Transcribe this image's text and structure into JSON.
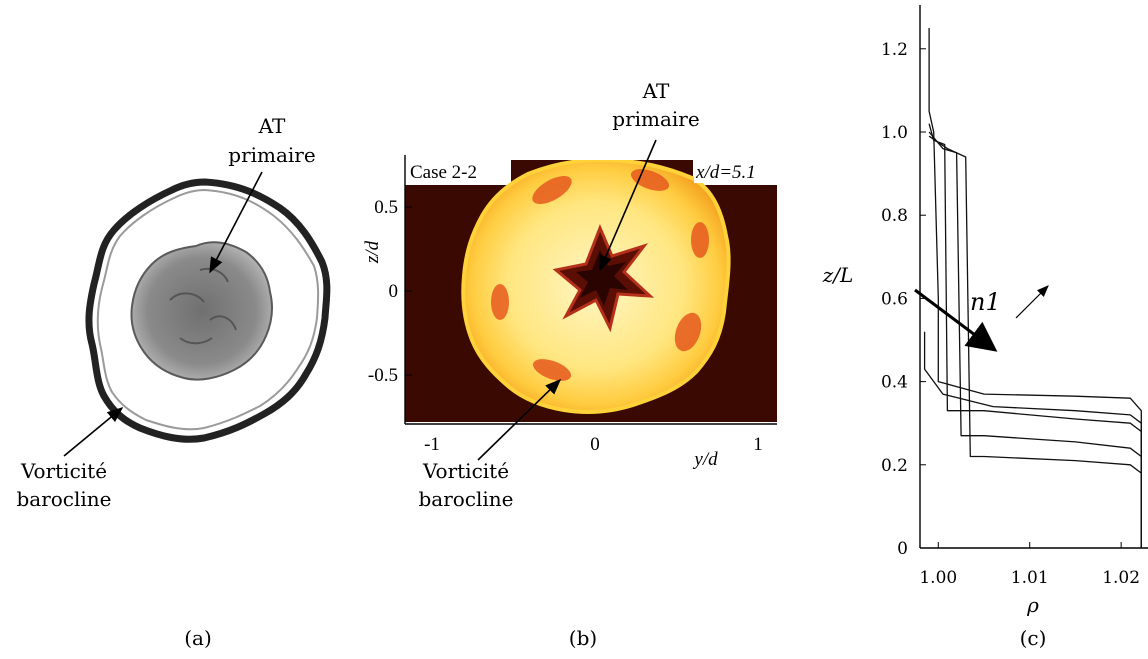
{
  "panel_a": {
    "caption": "(a)",
    "annotation_primary_line1": "AT",
    "annotation_primary_line2": "primaire",
    "annotation_baroclinic_line1": "Vorticité",
    "annotation_baroclinic_line2": "barocline"
  },
  "panel_b": {
    "caption": "(b)",
    "case_label": "Case 2-2",
    "position_label": "x/d=5.1",
    "xlabel": "y/d",
    "ylabel": "z/d",
    "xticks": [
      "-1",
      "0",
      "1"
    ],
    "yticks": [
      "0.5",
      "0",
      "-0.5"
    ],
    "annotation_primary_line1": "AT",
    "annotation_primary_line2": "primaire",
    "annotation_baroclinic_line1": "Vorticité",
    "annotation_baroclinic_line2": "barocline",
    "colors": {
      "background": "#3a0a02",
      "ring": "#fff2a8",
      "band": "#e65a1e"
    }
  },
  "chart_data": {
    "type": "line",
    "caption": "(c)",
    "xlabel": "ρ",
    "ylabel": "z/L",
    "xlim": [
      0.998,
      1.0225
    ],
    "ylim": [
      0,
      1.25
    ],
    "xticks": [
      "1.00",
      "1.01",
      "1.02"
    ],
    "yticks": [
      "0",
      "0.2",
      "0.4",
      "0.6",
      "0.8",
      "1.0",
      "1.2"
    ],
    "annotation": "n1",
    "series": [
      {
        "x": [
          0.999,
          0.999,
          0.9995,
          1.0,
          1.0,
          1.005,
          1.015,
          1.021,
          1.0222,
          1.0222
        ],
        "y": [
          1.25,
          1.05,
          1.0,
          0.6,
          0.4,
          0.37,
          0.365,
          0.36,
          0.33,
          0.0
        ]
      },
      {
        "x": [
          0.999,
          0.9995,
          1.0007,
          1.001,
          1.005,
          1.015,
          1.021,
          1.0222,
          1.0222
        ],
        "y": [
          1.02,
          0.98,
          0.97,
          0.33,
          0.33,
          0.31,
          0.3,
          0.28,
          0.0
        ]
      },
      {
        "x": [
          0.999,
          1.0005,
          1.002,
          1.0025,
          1.005,
          1.015,
          1.021,
          1.0222,
          1.0222
        ],
        "y": [
          1.0,
          0.96,
          0.95,
          0.27,
          0.27,
          0.255,
          0.24,
          0.22,
          0.0
        ]
      },
      {
        "x": [
          0.999,
          1.001,
          1.003,
          1.0035,
          1.005,
          1.015,
          1.021,
          1.0222,
          1.0222
        ],
        "y": [
          0.99,
          0.96,
          0.94,
          0.22,
          0.22,
          0.21,
          0.2,
          0.18,
          0.0
        ]
      },
      {
        "x": [
          0.9985,
          0.9985,
          1.0005,
          1.006,
          1.015,
          1.021,
          1.0222,
          1.0222
        ],
        "y": [
          0.52,
          0.43,
          0.37,
          0.34,
          0.33,
          0.32,
          0.3,
          0.0
        ]
      }
    ]
  }
}
